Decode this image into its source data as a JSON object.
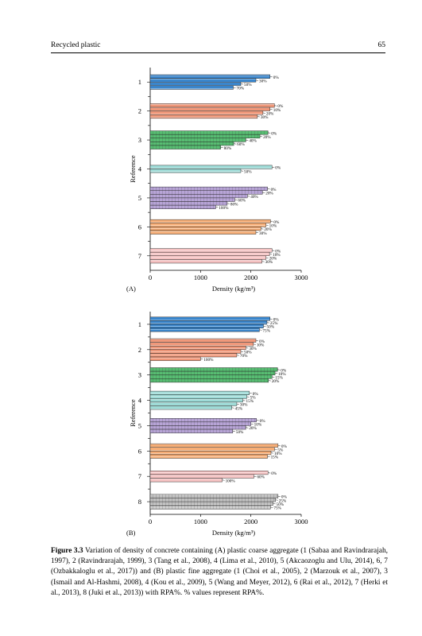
{
  "page": {
    "running_title": "Recycled plastic",
    "page_number": "65"
  },
  "colors": {
    "1": "#3a86cc",
    "2": "#f0987a",
    "3": "#57bd72",
    "4": "#9edbd7",
    "5": "#b7a4d6",
    "6": "#f6ad76",
    "7": "#f6c3c3",
    "8": "#c0c0c0"
  },
  "chart_data": [
    {
      "type": "bar",
      "orientation": "horizontal",
      "panel_label": "(A)",
      "xlabel": "Density (kg/m³)",
      "ylabel": "Reference",
      "xlim": [
        0,
        3000
      ],
      "xticks": [
        "0",
        "1000",
        "2000",
        "3000"
      ],
      "groups": [
        {
          "label": "1",
          "bars": [
            {
              "label": "0%",
              "value": 2380
            },
            {
              "label": "30%",
              "value": 2100
            },
            {
              "label": "50%",
              "value": 1800
            },
            {
              "label": "70%",
              "value": 1650
            }
          ]
        },
        {
          "label": "2",
          "bars": [
            {
              "label": "0%",
              "value": 2470
            },
            {
              "label": "10%",
              "value": 2380
            },
            {
              "label": "20%",
              "value": 2240
            },
            {
              "label": "30%",
              "value": 2130
            }
          ]
        },
        {
          "label": "3",
          "bars": [
            {
              "label": "0%",
              "value": 2340
            },
            {
              "label": "20%",
              "value": 2180
            },
            {
              "label": "40%",
              "value": 1900
            },
            {
              "label": "60%",
              "value": 1660
            },
            {
              "label": "80%",
              "value": 1400
            }
          ]
        },
        {
          "label": "4",
          "bars": [
            {
              "label": "0%",
              "value": 2420
            },
            {
              "label": "50%",
              "value": 1800
            }
          ]
        },
        {
          "label": "5",
          "bars": [
            {
              "label": "0%",
              "value": 2330
            },
            {
              "label": "20%",
              "value": 2230
            },
            {
              "label": "40%",
              "value": 1930
            },
            {
              "label": "60%",
              "value": 1680
            },
            {
              "label": "80%",
              "value": 1530
            },
            {
              "label": "100%",
              "value": 1300
            }
          ]
        },
        {
          "label": "6",
          "bars": [
            {
              "label": "0%",
              "value": 2390
            },
            {
              "label": "10%",
              "value": 2300
            },
            {
              "label": "20%",
              "value": 2200
            },
            {
              "label": "30%",
              "value": 2100
            }
          ]
        },
        {
          "label": "7",
          "bars": [
            {
              "label": "0%",
              "value": 2420
            },
            {
              "label": "10%",
              "value": 2370
            },
            {
              "label": "20%",
              "value": 2300
            },
            {
              "label": "30%",
              "value": 2220
            }
          ]
        }
      ]
    },
    {
      "type": "bar",
      "orientation": "horizontal",
      "panel_label": "(B)",
      "xlabel": "Density (kg/m³)",
      "ylabel": "Reference",
      "xlim": [
        0,
        3000
      ],
      "xticks": [
        "0",
        "1000",
        "2000",
        "3000"
      ],
      "groups": [
        {
          "label": "1",
          "bars": [
            {
              "label": "0%",
              "value": 2380
            },
            {
              "label": "25%",
              "value": 2320
            },
            {
              "label": "50%",
              "value": 2250
            },
            {
              "label": "75%",
              "value": 2170
            }
          ]
        },
        {
          "label": "2",
          "bars": [
            {
              "label": "0%",
              "value": 2100
            },
            {
              "label": "10%",
              "value": 2050
            },
            {
              "label": "30%",
              "value": 1900
            },
            {
              "label": "50%",
              "value": 1800
            },
            {
              "label": "70%",
              "value": 1720
            },
            {
              "label": "100%",
              "value": 1000
            }
          ]
        },
        {
          "label": "3",
          "bars": [
            {
              "label": "0%",
              "value": 2530
            },
            {
              "label": "10%",
              "value": 2480
            },
            {
              "label": "15%",
              "value": 2420
            },
            {
              "label": "20%",
              "value": 2350
            }
          ]
        },
        {
          "label": "4",
          "bars": [
            {
              "label": "0%",
              "value": 1970
            },
            {
              "label": "5%",
              "value": 1920
            },
            {
              "label": "15%",
              "value": 1840
            },
            {
              "label": "30%",
              "value": 1720
            },
            {
              "label": "45%",
              "value": 1620
            }
          ]
        },
        {
          "label": "5",
          "bars": [
            {
              "label": "0%",
              "value": 2110
            },
            {
              "label": "10%",
              "value": 2000
            },
            {
              "label": "20%",
              "value": 1900
            },
            {
              "label": "50%",
              "value": 1640
            }
          ]
        },
        {
          "label": "6",
          "bars": [
            {
              "label": "0%",
              "value": 2540
            },
            {
              "label": "5%",
              "value": 2470
            },
            {
              "label": "10%",
              "value": 2400
            },
            {
              "label": "15%",
              "value": 2330
            }
          ]
        },
        {
          "label": "7",
          "bars": [
            {
              "label": "0%",
              "value": 2340
            },
            {
              "label": "60%",
              "value": 2060
            },
            {
              "label": "100%",
              "value": 1430
            }
          ]
        },
        {
          "label": "8",
          "bars": [
            {
              "label": "0%",
              "value": 2540
            },
            {
              "label": "25%",
              "value": 2490
            },
            {
              "label": "50%",
              "value": 2440
            },
            {
              "label": "75%",
              "value": 2390
            }
          ]
        }
      ]
    }
  ],
  "caption": {
    "label": "Figure 3.3",
    "text": "Variation of density of concrete containing (A) plastic coarse aggregate (1 (Sabaa and Ravindrarajah, 1997), 2 (Ravindrarajah, 1999), 3 (Tang et al., 2008), 4 (Lima et al., 2010), 5 (Akcaozoglu and Ulu, 2014), 6, 7 (Ozbakkaloglu et al., 2017)) and (B) plastic fine aggregate (1 (Choi et al., 2005), 2 (Marzouk et al., 2007), 3 (Ismail and Al-Hashmi, 2008), 4 (Kou et al., 2009), 5 (Wang and Meyer, 2012), 6 (Rai et al., 2012), 7 (Herki et al., 2013), 8 (Juki et al., 2013)) with RPA%. % values represent RPA%."
  }
}
